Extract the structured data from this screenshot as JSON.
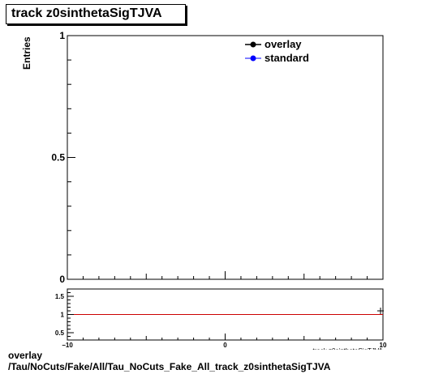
{
  "title": "track z0sinthetaSigTJVA",
  "footer": {
    "line1": "overlay",
    "line2": "/Tau/NoCuts/Fake/All/Tau_NoCuts_Fake_All_track_z0sinthetaSigTJVA"
  },
  "chart_data": [
    {
      "type": "line",
      "panel": "main",
      "ylabel": "Entries",
      "ylim": [
        0,
        1
      ],
      "xlim": [
        -10,
        10
      ],
      "y_tick_labels": [
        "0",
        "0.5",
        "1"
      ],
      "legend_placement": "top-right",
      "series": [
        {
          "name": "overlay",
          "color": "#000000",
          "x": [],
          "y": []
        },
        {
          "name": "standard",
          "color": "#0000ff",
          "x": [],
          "y": []
        }
      ]
    },
    {
      "type": "line",
      "panel": "ratio",
      "xlabel": "track z0sinthetaSigTJVA",
      "xlim": [
        -10,
        10
      ],
      "ylim": [
        0.3,
        1.7
      ],
      "x_tick_labels": [
        "−10",
        "0",
        "10"
      ],
      "y_tick_labels": [
        "0.5",
        "1",
        "1.5"
      ],
      "reference_line": {
        "y": 1,
        "color": "#cc0000"
      },
      "series": [
        {
          "name": "ratio",
          "color": "#000000",
          "x": [
            10
          ],
          "y": [
            1.1
          ]
        }
      ]
    }
  ]
}
